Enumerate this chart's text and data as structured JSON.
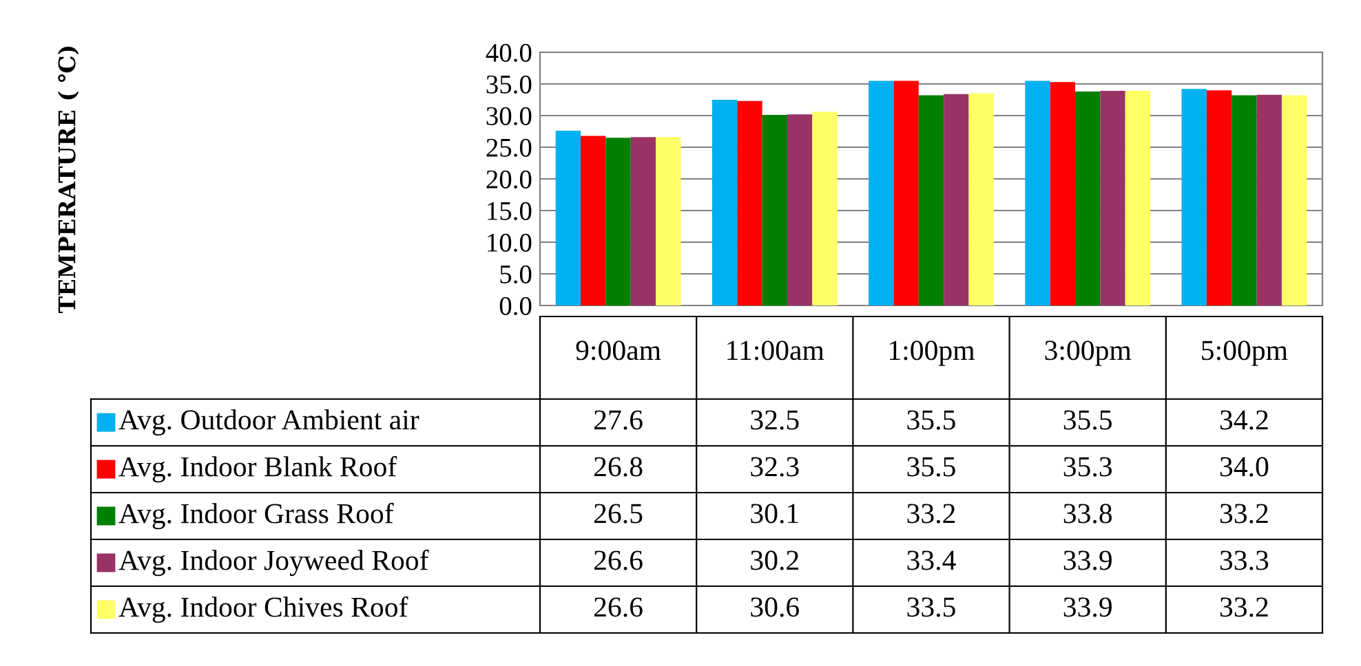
{
  "chart_data": {
    "type": "bar",
    "annotations": [
      "TEMPERATURE ( ℃)"
    ],
    "categories": [
      "9:00am",
      "11:00am",
      "1:00pm",
      "3:00pm",
      "5:00pm"
    ],
    "series": [
      {
        "name": "Avg. Outdoor Ambient air",
        "color": "#00b0f0",
        "values": [
          27.6,
          32.5,
          35.5,
          35.5,
          34.2
        ],
        "value_labels": [
          "27.6",
          "32.5",
          "35.5",
          "35.5",
          "34.2"
        ]
      },
      {
        "name": "Avg. Indoor Blank Roof",
        "color": "#ff0000",
        "values": [
          26.8,
          32.3,
          35.5,
          35.3,
          34.0
        ],
        "value_labels": [
          "26.8",
          "32.3",
          "35.5",
          "35.3",
          "34.0"
        ]
      },
      {
        "name": "Avg. Indoor Grass Roof",
        "color": "#008000",
        "values": [
          26.5,
          30.1,
          33.2,
          33.8,
          33.2
        ],
        "value_labels": [
          "26.5",
          "30.1",
          "33.2",
          "33.8",
          "33.2"
        ]
      },
      {
        "name": "Avg. Indoor Joyweed Roof",
        "color": "#993366",
        "values": [
          26.6,
          30.2,
          33.4,
          33.9,
          33.3
        ],
        "value_labels": [
          "26.6",
          "30.2",
          "33.4",
          "33.9",
          "33.3"
        ]
      },
      {
        "name": "Avg. Indoor Chives Roof",
        "color": "#ffff66",
        "values": [
          26.6,
          30.6,
          33.5,
          33.9,
          33.2
        ],
        "value_labels": [
          "26.6",
          "30.6",
          "33.5",
          "33.9",
          "33.2"
        ]
      }
    ],
    "ylim": [
      0,
      40
    ],
    "yticks": [
      {
        "value": 0,
        "label": "0.0"
      },
      {
        "value": 5,
        "label": "5.0"
      },
      {
        "value": 10,
        "label": "10.0"
      },
      {
        "value": 15,
        "label": "15.0"
      },
      {
        "value": 20,
        "label": "20.0"
      },
      {
        "value": 25,
        "label": "25.0"
      },
      {
        "value": 30,
        "label": "30.0"
      },
      {
        "value": 35,
        "label": "35.0"
      },
      {
        "value": 40,
        "label": "40.0"
      }
    ],
    "grid": "y",
    "legend": "bottom"
  }
}
